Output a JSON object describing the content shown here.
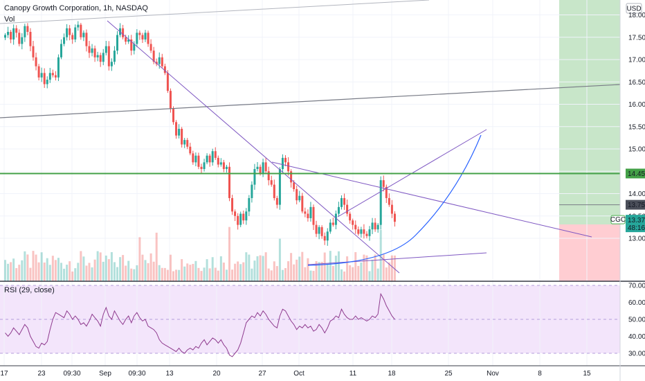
{
  "header": {
    "symbol_title": "Canopy Growth Corporation, 1h, NASDAQ",
    "volume_label": "Vol",
    "currency": "USD"
  },
  "colors": {
    "up": "#26a69a",
    "down": "#ef5350",
    "trendline": "#7e57c2",
    "support": "#43a047",
    "curve": "#2962ff",
    "rsi_line": "#8e3a8e",
    "rsi_band": "#f3e5fb",
    "target_zone": "#c8e6c9",
    "stop_zone": "#ffcdd2",
    "axis_text": "#131722"
  },
  "price_axis": {
    "ticks": [
      "18.00",
      "17.50",
      "17.00",
      "16.50",
      "16.00",
      "15.50",
      "15.00",
      "14.50",
      "14.00",
      "13.50",
      "13.00"
    ],
    "badges": [
      {
        "value": "14.45",
        "kind": "support"
      },
      {
        "value": "13.75",
        "kind": "entry"
      },
      {
        "value": "13.37",
        "kind": "last"
      }
    ],
    "countdown": "48:16",
    "ticker": "CGC"
  },
  "rsi": {
    "label": "RSI (29, close)",
    "ticks": [
      "70.00",
      "60.00",
      "50.00",
      "40.00",
      "30.00"
    ],
    "upper": 70,
    "lower": 30
  },
  "time_axis": {
    "ticks": [
      "17",
      "23",
      "09:30",
      "Sep",
      "09:30",
      "13",
      "20",
      "27",
      "Oct",
      "11",
      "18",
      "25",
      "Nov",
      "8",
      "15"
    ]
  },
  "chart_data": {
    "type": "candlestick",
    "title": "Canopy Growth Corporation, 1h, NASDAQ",
    "currency": "USD",
    "last_price": 13.37,
    "key_levels": {
      "support": 14.45,
      "entry": 13.75
    },
    "ylim": [
      12.7,
      18.1
    ],
    "close_path": [
      17.55,
      17.62,
      17.45,
      17.7,
      17.6,
      17.35,
      17.5,
      17.75,
      17.62,
      17.3,
      17.05,
      16.85,
      16.6,
      16.7,
      16.45,
      16.55,
      16.7,
      16.65,
      16.6,
      17.05,
      17.35,
      17.5,
      17.7,
      17.55,
      17.45,
      17.72,
      17.78,
      17.5,
      17.6,
      17.3,
      17.15,
      17.25,
      17.05,
      17.1,
      16.95,
      17.15,
      17.3,
      16.85,
      16.95,
      17.2,
      17.55,
      17.7,
      17.5,
      17.4,
      17.45,
      17.2,
      17.35,
      17.6,
      17.55,
      17.45,
      17.6,
      17.35,
      17.2,
      16.95,
      16.9,
      17.05,
      16.85,
      16.7,
      16.3,
      15.9,
      15.6,
      15.3,
      15.45,
      15.1,
      15.2,
      15.05,
      14.9,
      14.7,
      14.85,
      14.6,
      14.55,
      14.7,
      14.85,
      14.7,
      14.95,
      14.8,
      14.65,
      14.7,
      14.55,
      14.6,
      13.9,
      13.6,
      13.5,
      13.3,
      13.55,
      13.4,
      13.6,
      13.9,
      14.2,
      14.55,
      14.6,
      14.45,
      14.7,
      14.5,
      14.3,
      14.2,
      13.9,
      13.75,
      14.55,
      14.8,
      14.7,
      14.5,
      14.25,
      14.1,
      13.85,
      13.95,
      13.6,
      13.55,
      13.45,
      13.7,
      13.3,
      13.1,
      13.25,
      13.05,
      12.95,
      13.15,
      13.35,
      13.3,
      13.55,
      13.7,
      13.9,
      13.75,
      13.55,
      13.4,
      13.3,
      13.2,
      13.1,
      13.2,
      13.1,
      13.05,
      13.2,
      13.35,
      13.2,
      13.3,
      14.3,
      14.15,
      13.9,
      13.75,
      13.55,
      13.37
    ],
    "rsi_series": {
      "name": "RSI (29, close)",
      "period": 29,
      "ylim": [
        26,
        72
      ],
      "values": [
        42,
        40,
        42,
        45,
        43,
        41,
        44,
        47,
        45,
        40,
        37,
        34,
        33,
        36,
        35,
        37,
        44,
        50,
        54,
        53,
        52,
        51,
        55,
        53,
        50,
        52,
        50,
        47,
        48,
        46,
        49,
        53,
        51,
        49,
        46,
        53,
        57,
        52,
        50,
        55,
        52,
        49,
        47,
        50,
        52,
        48,
        52,
        54,
        51,
        49,
        50,
        46,
        45,
        44,
        42,
        38,
        36,
        35,
        34,
        33,
        32,
        31,
        33,
        31,
        30,
        32,
        33,
        32,
        34,
        33,
        36,
        38,
        35,
        37,
        39,
        38,
        36,
        38,
        35,
        33,
        29,
        28,
        30,
        32,
        36,
        42,
        48,
        50,
        52,
        51,
        54,
        52,
        55,
        53,
        50,
        48,
        46,
        45,
        52,
        56,
        55,
        52,
        49,
        47,
        44,
        46,
        45,
        47,
        45,
        46,
        43,
        44,
        47,
        45,
        42,
        45,
        49,
        50,
        52,
        51,
        56,
        53,
        51,
        50,
        50,
        52,
        50,
        51,
        50,
        49,
        50,
        52,
        51,
        53,
        65,
        62,
        58,
        55,
        52,
        50
      ]
    }
  }
}
